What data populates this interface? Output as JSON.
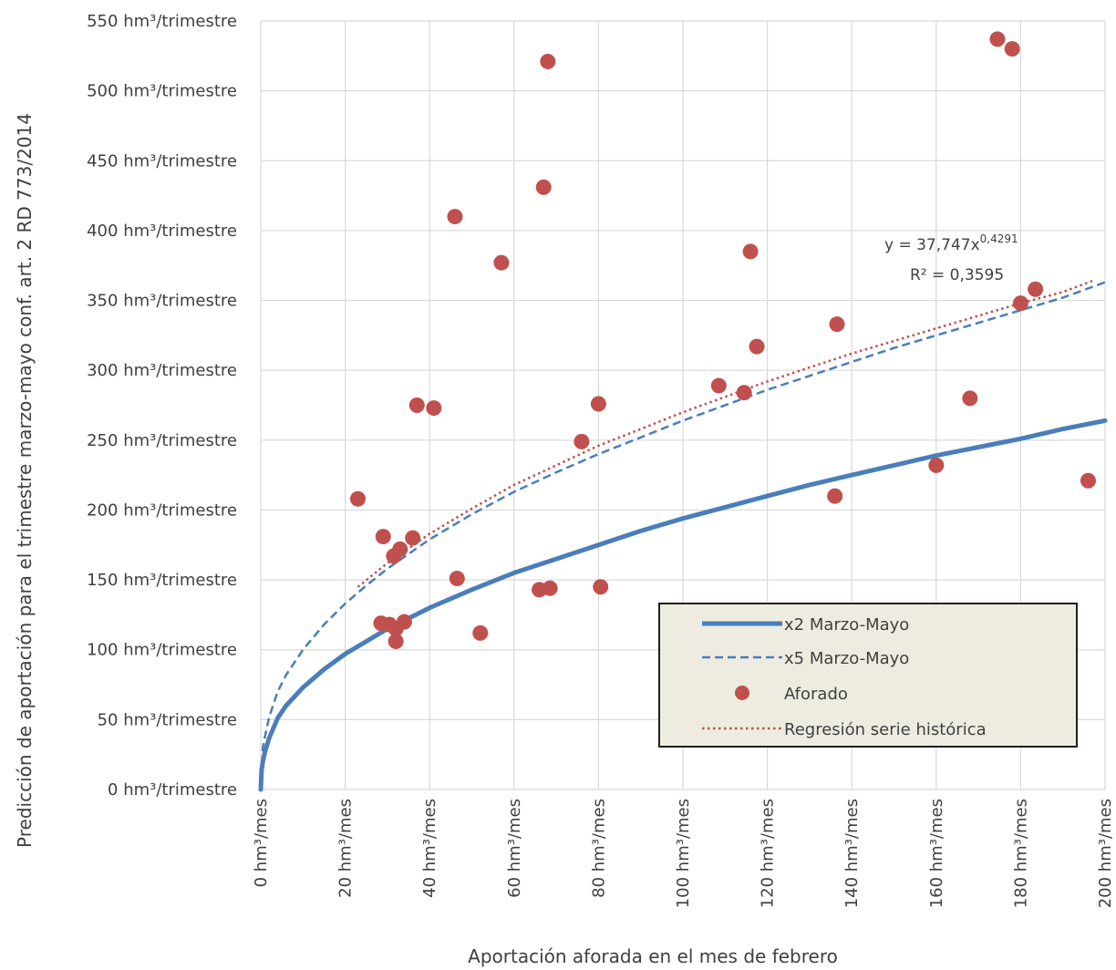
{
  "chart_data": {
    "type": "scatter",
    "xlabel": "Aportación aforada en el mes de febrero",
    "ylabel": "Predicción de aportación para el trimestre marzo-mayo conf. art. 2 RD 773/2014",
    "x_unit": "hm³/mes",
    "y_unit": "hm³/trimestre",
    "xlim": [
      0,
      200
    ],
    "ylim": [
      0,
      550
    ],
    "x_ticks": [
      0,
      20,
      40,
      60,
      80,
      100,
      120,
      140,
      160,
      180,
      200
    ],
    "y_ticks": [
      0,
      50,
      100,
      150,
      200,
      250,
      300,
      350,
      400,
      450,
      500,
      550
    ],
    "x_tick_labels": [
      "0 hm³/mes",
      "20 hm³/mes",
      "40 hm³/mes",
      "60 hm³/mes",
      "80 hm³/mes",
      "100 hm³/mes",
      "120 hm³/mes",
      "140 hm³/mes",
      "160 hm³/mes",
      "180 hm³/mes",
      "200 hm³/mes"
    ],
    "y_tick_labels": [
      "0 hm³/trimestre",
      "50 hm³/trimestre",
      "100 hm³/trimestre",
      "150 hm³/trimestre",
      "200 hm³/trimestre",
      "250 hm³/trimestre",
      "300 hm³/trimestre",
      "350 hm³/trimestre",
      "400 hm³/trimestre",
      "450 hm³/trimestre",
      "500 hm³/trimestre",
      "550 hm³/trimestre"
    ],
    "grid": true,
    "legend_position": "bottom-right",
    "annotation": {
      "equation_prefix": "y = 37,747x",
      "equation_exponent": "0,4291",
      "r2_label": "R² = 0,3595"
    },
    "series": [
      {
        "name": "x2 Marzo-Mayo",
        "style": "solid-thick",
        "color": "#4a7ebb",
        "x": [
          0,
          0.2,
          0.5,
          1,
          2,
          4,
          6,
          10,
          15,
          20,
          25,
          30,
          40,
          50,
          60,
          70,
          80,
          90,
          100,
          110,
          120,
          130,
          140,
          150,
          160,
          170,
          180,
          190,
          200
        ],
        "y": [
          0,
          14,
          20,
          27,
          37,
          51,
          60,
          73,
          86,
          97,
          106,
          115,
          130,
          143,
          155,
          165,
          175,
          185,
          194,
          202,
          210,
          218,
          225,
          232,
          239,
          245,
          251,
          258,
          264
        ]
      },
      {
        "name": "x5 Marzo-Mayo",
        "style": "dashed",
        "color": "#4a7ebb",
        "x": [
          0,
          0.5,
          1,
          2,
          4,
          6,
          10,
          15,
          20,
          25,
          30,
          40,
          50,
          60,
          70,
          80,
          90,
          100,
          110,
          120,
          130,
          140,
          150,
          160,
          170,
          180,
          190,
          200
        ],
        "y": [
          0,
          30,
          38,
          52,
          70,
          82,
          100,
          118,
          133,
          146,
          158,
          179,
          197,
          213,
          227,
          240,
          252,
          264,
          275,
          286,
          296,
          306,
          316,
          325,
          334,
          343,
          352,
          363
        ]
      },
      {
        "name": "Aforado",
        "style": "markers",
        "color": "#c0504d",
        "x": [
          23,
          28.5,
          29,
          30.5,
          31.5,
          32,
          32,
          33,
          34,
          36,
          37,
          41,
          46,
          46.5,
          52,
          57,
          66,
          67,
          68,
          68.5,
          76,
          80,
          80.5,
          108.5,
          114.5,
          116,
          117.5,
          136,
          136.5,
          160,
          168,
          174.5,
          178,
          180,
          183.5,
          196
        ],
        "y": [
          208,
          119,
          181,
          118,
          167,
          106,
          115,
          172,
          120,
          180,
          275,
          273,
          410,
          151,
          112,
          377,
          143,
          431,
          521,
          144,
          249,
          276,
          145,
          289,
          284,
          385,
          317,
          210,
          333,
          232,
          280,
          537,
          530,
          348,
          358,
          221
        ]
      },
      {
        "name": "Regresión serie histórica",
        "style": "dotted",
        "color": "#c0504d",
        "x": [
          23,
          30,
          40,
          50,
          60,
          70,
          80,
          90,
          100,
          110,
          120,
          130,
          140,
          150,
          160,
          170,
          180,
          190,
          197
        ],
        "y": [
          145,
          162,
          183,
          201,
          218,
          232,
          246,
          258,
          270,
          281,
          292,
          302,
          312,
          321,
          330,
          339,
          348,
          356,
          364
        ]
      }
    ]
  }
}
